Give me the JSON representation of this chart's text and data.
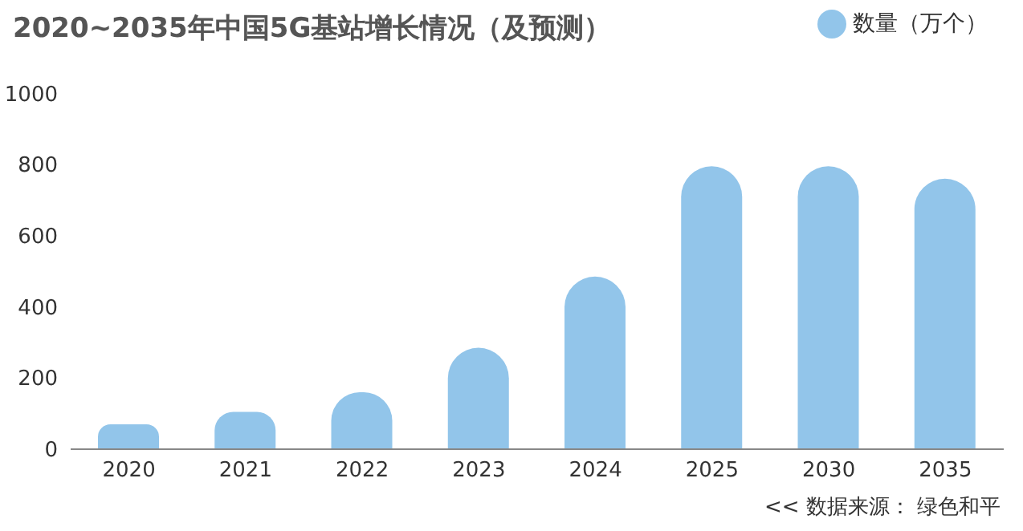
{
  "chart_data": {
    "type": "bar",
    "title": "2020~2035年中国5G基站增长情况（及预测）",
    "categories": [
      "2020",
      "2021",
      "2022",
      "2023",
      "2024",
      "2025",
      "2030",
      "2035"
    ],
    "series": [
      {
        "name": "数量（万个）",
        "color": "#92c5ea",
        "values": [
          70,
          105,
          160,
          285,
          485,
          795,
          795,
          760
        ]
      }
    ],
    "ylim": [
      0,
      1000
    ],
    "yticks": [
      0,
      200,
      400,
      600,
      800,
      1000
    ],
    "grid": false,
    "legend": "top right",
    "annotations": [
      "<<  数据来源： 绿色和平"
    ]
  }
}
